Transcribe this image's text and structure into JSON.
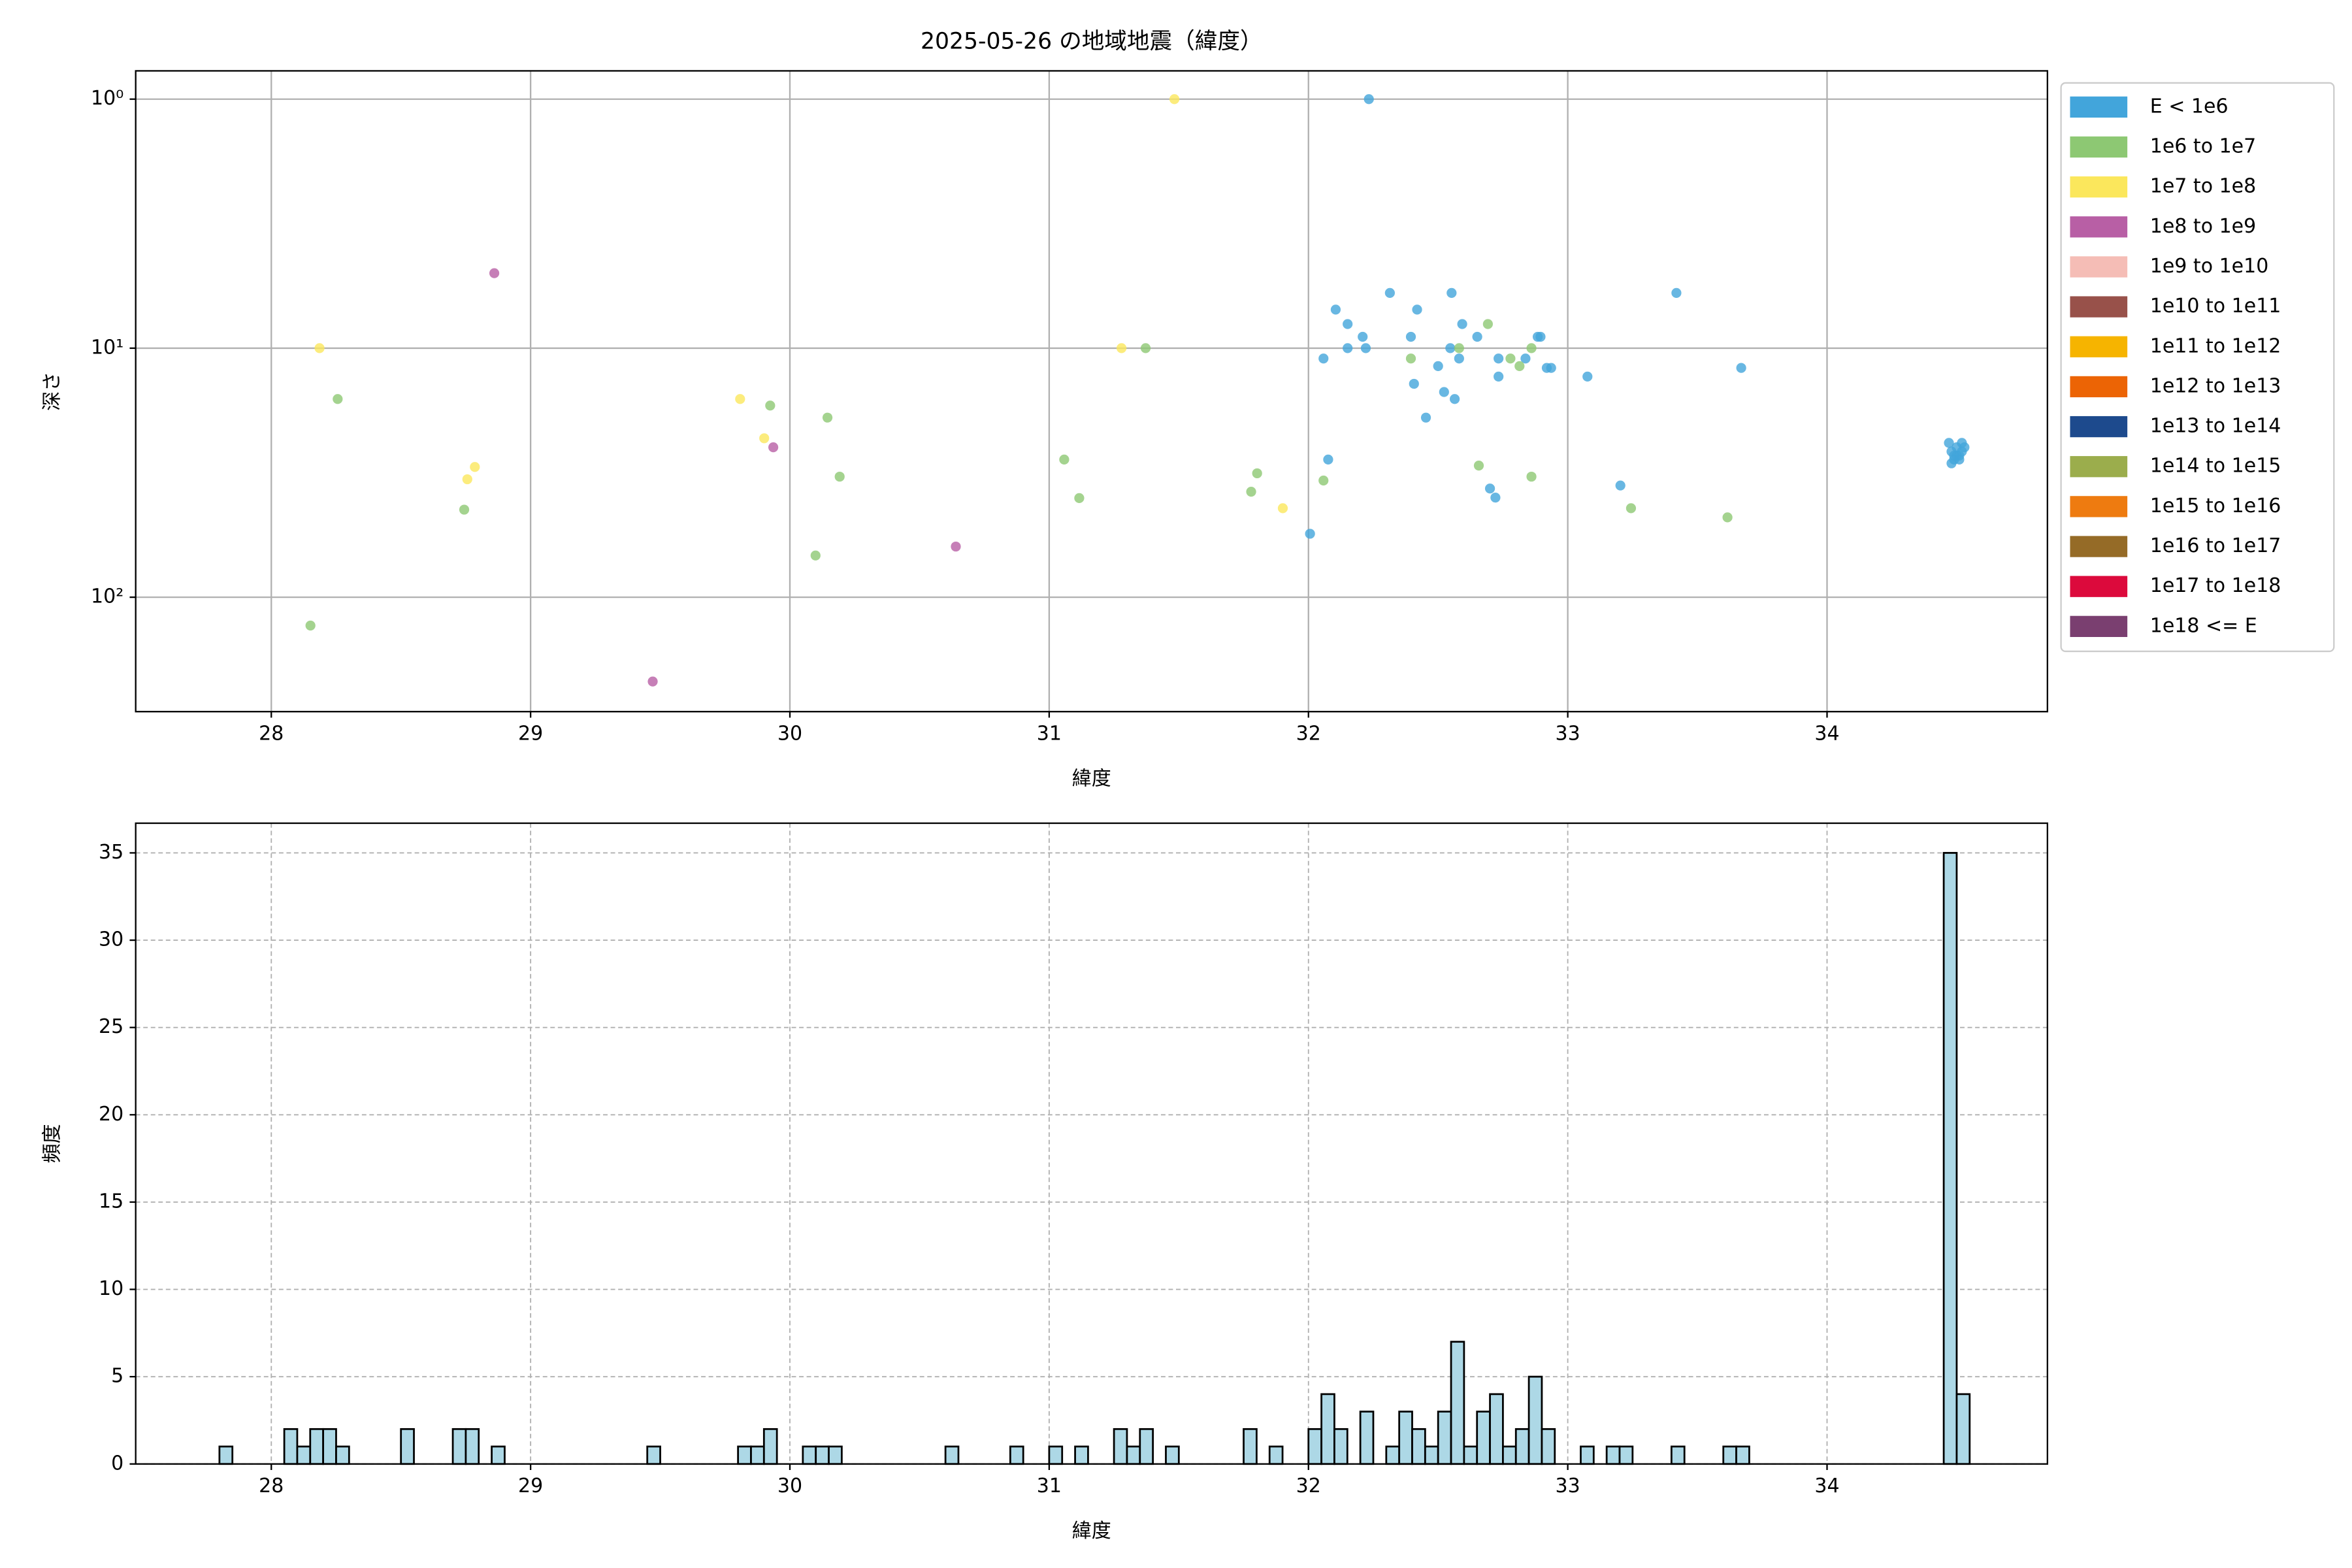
{
  "chart_data": [
    {
      "type": "scatter",
      "title": "2025-05-26 の地域地震（緯度）",
      "x_label": "緯度",
      "y_label": "深さ",
      "xlim": [
        27.477,
        34.85
      ],
      "xticks": [
        28,
        29,
        30,
        31,
        32,
        33,
        34
      ],
      "ylim": [
        0.77,
        288
      ],
      "y_log": true,
      "y_inverted": true,
      "yticks": [
        {
          "value": 1,
          "label": "10⁰"
        },
        {
          "value": 10,
          "label": "10¹"
        },
        {
          "value": 100,
          "label": "10²"
        }
      ],
      "grid": true,
      "grid_style": "solid",
      "legend": "outside upper right",
      "series": [
        {
          "name": "E < 1e6",
          "color": "#42a5db",
          "x": [
            32.233,
            32.105,
            32.151,
            32.209,
            32.058,
            32.151,
            32.221,
            32.314,
            32.419,
            32.395,
            32.552,
            32.593,
            32.651,
            32.547,
            32.581,
            32.5,
            32.407,
            32.523,
            32.564,
            32.453,
            32.733,
            32.733,
            32.837,
            32.884,
            32.895,
            32.919,
            32.936,
            33.076,
            32.7,
            32.721,
            33.203,
            33.419,
            33.669,
            32.006,
            32.076,
            34.47,
            34.48,
            34.49,
            34.5,
            34.51,
            34.52,
            34.53,
            34.48,
            34.5,
            34.52,
            34.49,
            34.51
          ],
          "values": [
            1,
            7,
            8,
            9,
            11,
            10,
            10,
            6,
            7,
            9,
            6,
            8,
            9,
            10,
            11,
            11.8,
            13.9,
            15,
            16,
            19,
            11,
            13,
            11,
            9,
            9,
            12,
            12,
            13,
            36.6,
            39.8,
            35.6,
            6,
            12,
            55.6,
            28,
            24,
            26,
            28,
            25,
            27,
            26,
            25,
            29,
            27,
            24,
            27,
            28
          ]
        },
        {
          "name": "1e6 to 1e7",
          "color": "#8dc873",
          "x": [
            28.256,
            28.151,
            28.744,
            29.924,
            30.145,
            30.192,
            30.099,
            31.058,
            31.116,
            31.372,
            31.779,
            31.802,
            32.058,
            32.395,
            32.581,
            32.692,
            32.779,
            32.814,
            32.86,
            32.657,
            32.86,
            33.244,
            33.616
          ],
          "values": [
            16,
            130,
            44.5,
            17,
            19,
            32.8,
            68,
            28,
            40,
            10,
            37.7,
            31.8,
            34,
            11,
            10,
            8,
            11,
            11.8,
            10,
            29.6,
            32.8,
            43.9,
            47.8
          ]
        },
        {
          "name": "1e7 to 1e8",
          "color": "#fbe75c",
          "x": [
            31.483,
            28.186,
            31.279,
            29.808,
            29.901,
            28.785,
            28.756,
            31.901
          ],
          "values": [
            1,
            10,
            10,
            16,
            23,
            30,
            33.6,
            43.9
          ]
        },
        {
          "name": "1e8 to 1e9",
          "color": "#b85fa5",
          "x": [
            28.86,
            29.936,
            30.64,
            29.471
          ],
          "values": [
            5,
            25,
            62.6,
            218
          ]
        },
        {
          "name": "1e9 to 1e10",
          "color": "#f5bdb6",
          "x": [],
          "values": []
        },
        {
          "name": "1e10 to 1e11",
          "color": "#98514a",
          "x": [],
          "values": []
        },
        {
          "name": "1e11 to 1e12",
          "color": "#f6b400",
          "x": [],
          "values": []
        },
        {
          "name": "1e12 to 1e13",
          "color": "#ec6405",
          "x": [],
          "values": []
        },
        {
          "name": "1e13 to 1e14",
          "color": "#1d4a8d",
          "x": [],
          "values": []
        },
        {
          "name": "1e14 to 1e15",
          "color": "#9bad4c",
          "x": [],
          "values": []
        },
        {
          "name": "1e15 to 1e16",
          "color": "#ee7b10",
          "x": [],
          "values": []
        },
        {
          "name": "1e16 to 1e17",
          "color": "#956b27",
          "x": [],
          "values": []
        },
        {
          "name": "1e17 to 1e18",
          "color": "#dc0a3c",
          "x": [],
          "values": []
        },
        {
          "name": "1e18 <= E",
          "color": "#7a3f70",
          "x": [],
          "values": []
        }
      ]
    },
    {
      "type": "histogram",
      "x_label": "緯度",
      "y_label": "頻度",
      "xlim": [
        27.477,
        34.85
      ],
      "xticks": [
        28,
        29,
        30,
        31,
        32,
        33,
        34
      ],
      "ylim": [
        0,
        36.7
      ],
      "yticks": [
        0,
        5,
        10,
        15,
        20,
        25,
        30,
        35
      ],
      "grid": true,
      "grid_style": "dashed",
      "color": "#add8e6",
      "edgecolor": "#000000",
      "bins": [
        27.8,
        27.85,
        27.9,
        27.95,
        28.0,
        28.05,
        28.1,
        28.15,
        28.2,
        28.25,
        28.3,
        28.35,
        28.4,
        28.45,
        28.5,
        28.55,
        28.6,
        28.65,
        28.7,
        28.75,
        28.8,
        28.85,
        28.9,
        28.95,
        29.0,
        29.05,
        29.1,
        29.15,
        29.2,
        29.25,
        29.3,
        29.35,
        29.4,
        29.45,
        29.5,
        29.55,
        29.6,
        29.65,
        29.7,
        29.75,
        29.8,
        29.85,
        29.9,
        29.95,
        30.0,
        30.05,
        30.1,
        30.15,
        30.2,
        30.25,
        30.3,
        30.35,
        30.4,
        30.45,
        30.5,
        30.55,
        30.6,
        30.65,
        30.7,
        30.75,
        30.8,
        30.85,
        30.9,
        30.95,
        31.0,
        31.05,
        31.1,
        31.15,
        31.2,
        31.25,
        31.3,
        31.35,
        31.4,
        31.45,
        31.5,
        31.55,
        31.6,
        31.65,
        31.7,
        31.75,
        31.8,
        31.85,
        31.9,
        31.95,
        32.0,
        32.05,
        32.1,
        32.15,
        32.2,
        32.25,
        32.3,
        32.35,
        32.4,
        32.45,
        32.5,
        32.55,
        32.6,
        32.65,
        32.7,
        32.75,
        32.8,
        32.85,
        32.9,
        32.95,
        33.0,
        33.05,
        33.1,
        33.15,
        33.2,
        33.25,
        33.3,
        33.35,
        33.4,
        33.45,
        33.5,
        33.55,
        33.6,
        33.65,
        33.7,
        33.75,
        33.8,
        33.85,
        33.9,
        33.95,
        34.0,
        34.05,
        34.1,
        34.15,
        34.2,
        34.25,
        34.3,
        34.35,
        34.4,
        34.45,
        34.5,
        34.55
      ],
      "values": [
        1,
        0,
        0,
        0,
        0,
        2,
        1,
        2,
        2,
        1,
        0,
        0,
        0,
        0,
        2,
        0,
        0,
        0,
        2,
        2,
        0,
        1,
        0,
        0,
        0,
        0,
        0,
        0,
        0,
        0,
        0,
        0,
        0,
        1,
        0,
        0,
        0,
        0,
        0,
        0,
        1,
        1,
        2,
        0,
        0,
        1,
        1,
        1,
        0,
        0,
        0,
        0,
        0,
        0,
        0,
        0,
        1,
        0,
        0,
        0,
        0,
        1,
        0,
        0,
        1,
        0,
        1,
        0,
        0,
        2,
        1,
        2,
        0,
        1,
        0,
        0,
        0,
        0,
        0,
        2,
        0,
        1,
        0,
        0,
        2,
        4,
        2,
        0,
        3,
        0,
        1,
        3,
        2,
        1,
        3,
        7,
        1,
        3,
        4,
        1,
        2,
        5,
        2,
        0,
        0,
        1,
        0,
        1,
        1,
        0,
        0,
        0,
        1,
        0,
        0,
        0,
        1,
        1,
        0,
        0,
        0,
        0,
        0,
        0,
        0,
        0,
        0,
        0,
        0,
        0,
        0,
        0,
        0,
        35,
        4
      ]
    }
  ]
}
